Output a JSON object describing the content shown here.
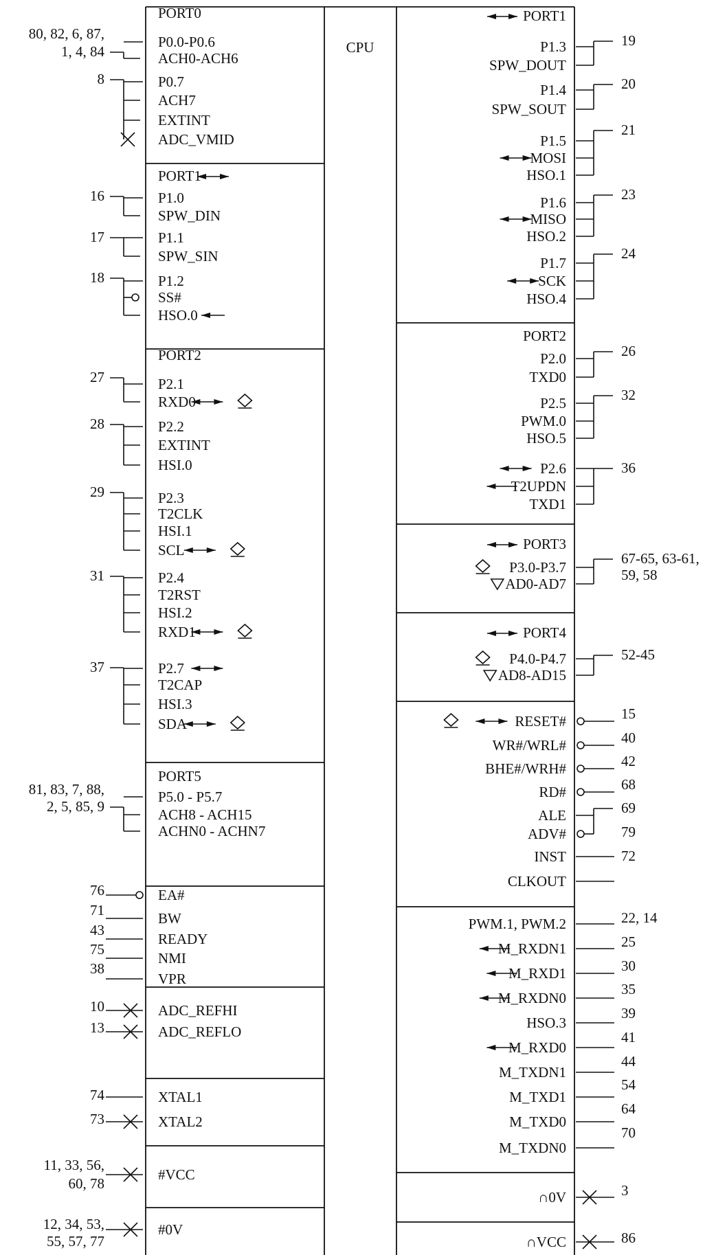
{
  "cpu_label": "CPU",
  "left_blocks": [
    {
      "title": "PORT0",
      "title_arrow": false,
      "signals": [
        {
          "pins": [
            "80, 82, 6, 87,",
            "1, 4, 84"
          ],
          "labels": [
            "P0.0-P0.6",
            "ACH0-ACH6"
          ],
          "conn": "plain",
          "arrows": []
        },
        {
          "pins": [
            "8"
          ],
          "labels": [
            "P0.7",
            "ACH7",
            "EXTINT",
            "ADC_VMID"
          ],
          "conn": "x_last",
          "arrows": []
        }
      ]
    },
    {
      "title": "PORT1",
      "title_arrow": true,
      "signals": [
        {
          "pins": [
            "16"
          ],
          "labels": [
            "P1.0",
            "SPW_DIN"
          ],
          "conn": "plain",
          "arrows": []
        },
        {
          "pins": [
            "17"
          ],
          "labels": [
            "P1.1",
            "SPW_SIN"
          ],
          "conn": "plain",
          "arrows": []
        },
        {
          "pins": [
            "18"
          ],
          "labels": [
            "P1.2",
            "SS#",
            "HSO.0"
          ],
          "conn": "circle_mid",
          "arrows": [
            [
              2,
              "out"
            ]
          ]
        }
      ]
    },
    {
      "title": "PORT2",
      "title_arrow": false,
      "signals": [
        {
          "pins": [
            "27"
          ],
          "labels": [
            "P2.1",
            "RXD0"
          ],
          "conn": "plain",
          "arrows": [
            [
              1,
              "bi_d"
            ]
          ]
        },
        {
          "pins": [
            "28"
          ],
          "labels": [
            "P2.2",
            "EXTINT",
            "HSI.0"
          ],
          "conn": "plain",
          "arrows": []
        },
        {
          "pins": [
            "29"
          ],
          "labels": [
            "P2.3",
            "T2CLK",
            "HSI.1",
            "SCL"
          ],
          "conn": "plain",
          "arrows": [
            [
              3,
              "bi_d"
            ]
          ]
        },
        {
          "pins": [
            "31"
          ],
          "labels": [
            "P2.4",
            "T2RST",
            "HSI.2",
            "RXD1"
          ],
          "conn": "plain",
          "arrows": [
            [
              3,
              "bi_d"
            ]
          ]
        },
        {
          "pins": [
            "37"
          ],
          "labels": [
            "P2.7",
            "T2CAP",
            "HSI.3",
            "SDA"
          ],
          "conn": "plain",
          "arrows": [
            [
              0,
              "bi"
            ],
            [
              3,
              "bi_d"
            ]
          ]
        }
      ]
    },
    {
      "title": "PORT5",
      "title_arrow": false,
      "signals": [
        {
          "pins": [
            "81, 83, 7, 88,",
            "2, 5, 85, 9"
          ],
          "labels": [
            "P5.0 - P5.7",
            "ACH8 - ACH15",
            "ACHN0 - ACHN7"
          ],
          "conn": "plain",
          "arrows": []
        }
      ]
    },
    {
      "title": "",
      "title_arrow": false,
      "signals": [
        {
          "pins": [
            "76"
          ],
          "labels": [
            "EA#"
          ],
          "conn": "circle",
          "arrows": []
        },
        {
          "pins": [
            "71"
          ],
          "labels": [
            "BW"
          ],
          "conn": "line",
          "arrows": []
        },
        {
          "pins": [
            "43"
          ],
          "labels": [
            "READY"
          ],
          "conn": "line",
          "arrows": []
        },
        {
          "pins": [
            "75"
          ],
          "labels": [
            "NMI"
          ],
          "conn": "line",
          "arrows": []
        },
        {
          "pins": [
            "38"
          ],
          "labels": [
            "VPR"
          ],
          "conn": "line",
          "arrows": []
        }
      ]
    },
    {
      "title": "",
      "title_arrow": false,
      "signals": [
        {
          "pins": [
            "10"
          ],
          "labels": [
            "ADC_REFHI"
          ],
          "conn": "x",
          "arrows": []
        },
        {
          "pins": [
            "13"
          ],
          "labels": [
            "ADC_REFLO"
          ],
          "conn": "x",
          "arrows": []
        }
      ]
    },
    {
      "title": "",
      "title_arrow": false,
      "signals": [
        {
          "pins": [
            "74"
          ],
          "labels": [
            "XTAL1"
          ],
          "conn": "line",
          "arrows": []
        },
        {
          "pins": [
            "73"
          ],
          "labels": [
            "XTAL2"
          ],
          "conn": "x",
          "arrows": []
        }
      ]
    },
    {
      "title": "",
      "title_arrow": false,
      "signals": [
        {
          "pins": [
            "11, 33, 56,",
            "60, 78"
          ],
          "labels": [
            "#VCC"
          ],
          "conn": "x",
          "arrows": []
        }
      ]
    },
    {
      "title": "",
      "title_arrow": false,
      "signals": [
        {
          "pins": [
            "12, 34, 53,",
            "55, 57, 77"
          ],
          "labels": [
            "#0V"
          ],
          "conn": "x",
          "arrows": []
        }
      ]
    }
  ],
  "right_blocks": [
    {
      "title": "PORT1",
      "title_arrow": true,
      "signals": [
        {
          "pins": [
            "19"
          ],
          "labels": [
            "P1.3",
            "SPW_DOUT"
          ],
          "conn": "bracket",
          "arrows": []
        },
        {
          "pins": [
            "20"
          ],
          "labels": [
            "P1.4",
            "SPW_SOUT"
          ],
          "conn": "bracket",
          "arrows": []
        },
        {
          "pins": [
            "21"
          ],
          "labels": [
            "P1.5",
            "MOSI",
            "HSO.1"
          ],
          "conn": "bracket",
          "arrows": [
            [
              1,
              "bi"
            ]
          ]
        },
        {
          "pins": [
            "23"
          ],
          "labels": [
            "P1.6",
            "MISO",
            "HSO.2"
          ],
          "conn": "bracket",
          "arrows": [
            [
              1,
              "bi"
            ]
          ]
        },
        {
          "pins": [
            "24"
          ],
          "labels": [
            "P1.7",
            "SCK",
            "HSO.4"
          ],
          "conn": "bracket",
          "arrows": [
            [
              1,
              "bi"
            ]
          ]
        }
      ]
    },
    {
      "title": "PORT2",
      "title_arrow": false,
      "signals": [
        {
          "pins": [
            "26"
          ],
          "labels": [
            "P2.0",
            "TXD0"
          ],
          "conn": "bracket",
          "arrows": []
        },
        {
          "pins": [
            "32"
          ],
          "labels": [
            "P2.5",
            "PWM.0",
            "HSO.5"
          ],
          "conn": "bracket",
          "arrows": []
        },
        {
          "pins": [
            "36"
          ],
          "labels": [
            "P2.6",
            "T2UPDN",
            "TXD1"
          ],
          "conn": "bracket",
          "arrows": [
            [
              0,
              "bi"
            ],
            [
              1,
              "in"
            ]
          ]
        }
      ]
    },
    {
      "title": "PORT3",
      "title_arrow": true,
      "signals": [
        {
          "pins": [
            "67-65, 63-61,",
            "59, 58"
          ],
          "labels": [
            "P3.0-P3.7",
            "AD0-AD7"
          ],
          "conn": "bracket",
          "arrows": [
            [
              0,
              "diamond"
            ],
            [
              1,
              "triangle"
            ]
          ]
        }
      ]
    },
    {
      "title": "PORT4",
      "title_arrow": true,
      "signals": [
        {
          "pins": [
            "52-45"
          ],
          "labels": [
            "P4.0-P4.7",
            "AD8-AD15"
          ],
          "conn": "bracket",
          "arrows": [
            [
              0,
              "diamond"
            ],
            [
              1,
              "triangle"
            ]
          ]
        }
      ]
    },
    {
      "title": "",
      "title_arrow": false,
      "signals": [
        {
          "pins": [
            "15"
          ],
          "labels": [
            "RESET#"
          ],
          "conn": "circle",
          "arrows": [
            [
              0,
              "diamond_bi"
            ]
          ]
        },
        {
          "pins": [
            "40"
          ],
          "labels": [
            "WR#/WRL#"
          ],
          "conn": "circle",
          "arrows": []
        },
        {
          "pins": [
            "42"
          ],
          "labels": [
            "BHE#/WRH#"
          ],
          "conn": "circle",
          "arrows": []
        },
        {
          "pins": [
            "68"
          ],
          "labels": [
            "RD#"
          ],
          "conn": "circle",
          "arrows": []
        },
        {
          "pins": [
            "69"
          ],
          "labels": [
            "ALE",
            "ADV#"
          ],
          "conn": "bracket_circle",
          "arrows": []
        },
        {
          "pins": [
            "79"
          ],
          "labels": [
            "INST"
          ],
          "conn": "line",
          "arrows": []
        },
        {
          "pins": [
            "72"
          ],
          "labels": [
            "CLKOUT"
          ],
          "conn": "line",
          "arrows": []
        }
      ]
    },
    {
      "title": "",
      "title_arrow": false,
      "signals": [
        {
          "pins": [
            "22, 14"
          ],
          "labels": [
            "PWM.1, PWM.2"
          ],
          "conn": "line",
          "arrows": []
        },
        {
          "pins": [
            "25"
          ],
          "labels": [
            "M_RXDN1"
          ],
          "conn": "line",
          "arrows": [
            [
              0,
              "in"
            ]
          ]
        },
        {
          "pins": [
            "30"
          ],
          "labels": [
            "M_RXD1"
          ],
          "conn": "line",
          "arrows": [
            [
              0,
              "in"
            ]
          ]
        },
        {
          "pins": [
            "35"
          ],
          "labels": [
            "M_RXDN0"
          ],
          "conn": "line",
          "arrows": [
            [
              0,
              "in"
            ]
          ]
        },
        {
          "pins": [
            "39"
          ],
          "labels": [
            "HSO.3"
          ],
          "conn": "line",
          "arrows": []
        },
        {
          "pins": [
            "41"
          ],
          "labels": [
            "M_RXD0"
          ],
          "conn": "line",
          "arrows": [
            [
              0,
              "in"
            ]
          ]
        },
        {
          "pins": [
            "44"
          ],
          "labels": [
            "M_TXDN1"
          ],
          "conn": "line",
          "arrows": []
        },
        {
          "pins": [
            "54"
          ],
          "labels": [
            "M_TXD1"
          ],
          "conn": "line",
          "arrows": []
        },
        {
          "pins": [
            "64"
          ],
          "labels": [
            "M_TXD0"
          ],
          "conn": "line",
          "arrows": []
        },
        {
          "pins": [
            "70"
          ],
          "labels": [
            "M_TXDN0"
          ],
          "conn": "line",
          "arrows": []
        }
      ]
    },
    {
      "title": "",
      "title_arrow": false,
      "signals": [
        {
          "pins": [
            "3"
          ],
          "labels": [
            "∩0V"
          ],
          "conn": "x",
          "arrows": []
        }
      ]
    },
    {
      "title": "",
      "title_arrow": false,
      "signals": [
        {
          "pins": [
            "86"
          ],
          "labels": [
            "∩VCC"
          ],
          "conn": "x",
          "arrows": []
        }
      ]
    }
  ]
}
